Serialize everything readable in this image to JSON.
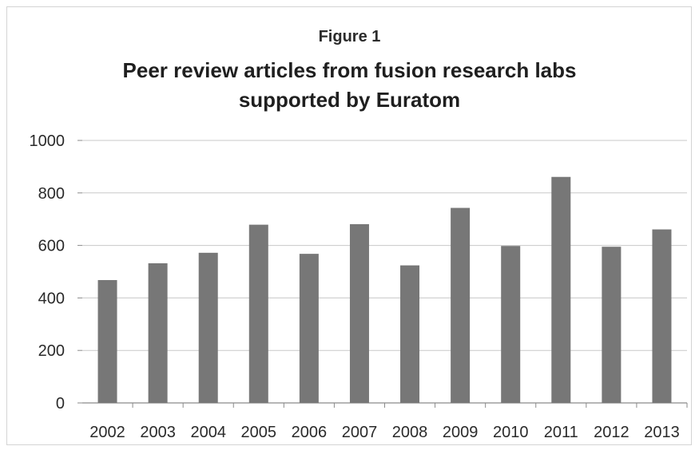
{
  "figure_label": "Figure 1",
  "chart_data": {
    "type": "bar",
    "title": "Peer review articles from fusion research labs supported by Euratom",
    "categories": [
      "2002",
      "2003",
      "2004",
      "2005",
      "2006",
      "2007",
      "2008",
      "2009",
      "2010",
      "2011",
      "2012",
      "2013"
    ],
    "values": [
      468,
      532,
      572,
      679,
      568,
      681,
      524,
      743,
      598,
      861,
      595,
      661
    ],
    "xlabel": "",
    "ylabel": "",
    "ylim": [
      0,
      1000
    ],
    "yticks": [
      0,
      200,
      400,
      600,
      800,
      1000
    ],
    "grid": true,
    "legend": "none",
    "colors": {
      "bar": "#777777",
      "gridline": "#c8c8c8",
      "axis": "#8a8a8a"
    }
  }
}
